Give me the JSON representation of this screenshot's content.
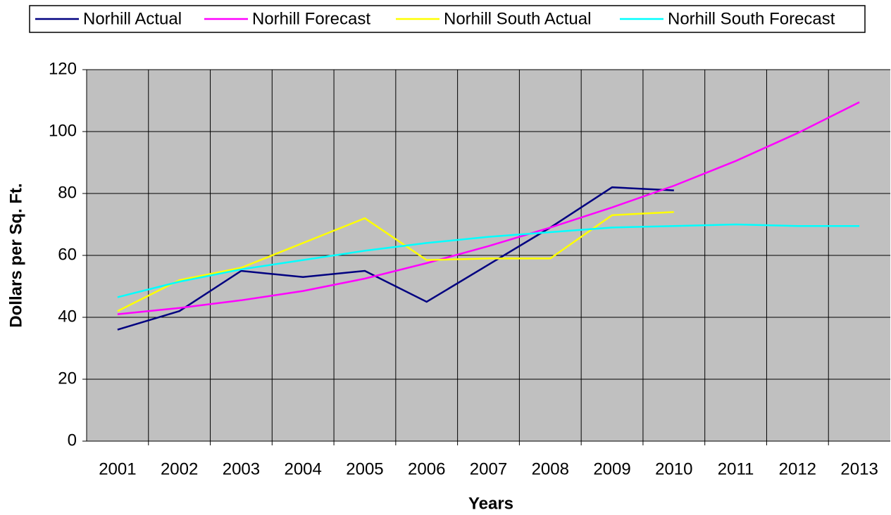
{
  "chart_data": {
    "type": "line",
    "x_label": "Years",
    "y_label": "Dollars per Sq. Ft.",
    "categories": [
      "2001",
      "2002",
      "2003",
      "2004",
      "2005",
      "2006",
      "2007",
      "2008",
      "2009",
      "2010",
      "2011",
      "2012",
      "2013"
    ],
    "series": [
      {
        "name": "Norhill Actual",
        "color": "#000080",
        "values": [
          36,
          42,
          55,
          53,
          55,
          45,
          57,
          69,
          82,
          81,
          null,
          null,
          null
        ]
      },
      {
        "name": "Norhill Forecast",
        "color": "#ff00ff",
        "values": [
          41,
          43,
          45.5,
          48.5,
          52.5,
          57.5,
          63,
          69,
          75.5,
          82.5,
          90.5,
          99.5,
          109.5
        ]
      },
      {
        "name": "Norhill South Actual",
        "color": "#ffff00",
        "values": [
          42,
          52,
          56,
          64,
          72,
          58.5,
          59,
          59,
          73,
          74,
          null,
          null,
          null
        ]
      },
      {
        "name": "Norhill South Forecast",
        "color": "#00ffff",
        "values": [
          46.5,
          51.5,
          55.5,
          58.5,
          61.5,
          64,
          66,
          67.5,
          69,
          69.5,
          70,
          69.5,
          69.5
        ]
      }
    ],
    "ylim": [
      0,
      120
    ],
    "yticks": [
      0,
      20,
      40,
      60,
      80,
      100,
      120
    ],
    "grid": true,
    "legend": "top",
    "plot_background": "#c0c0c0"
  }
}
